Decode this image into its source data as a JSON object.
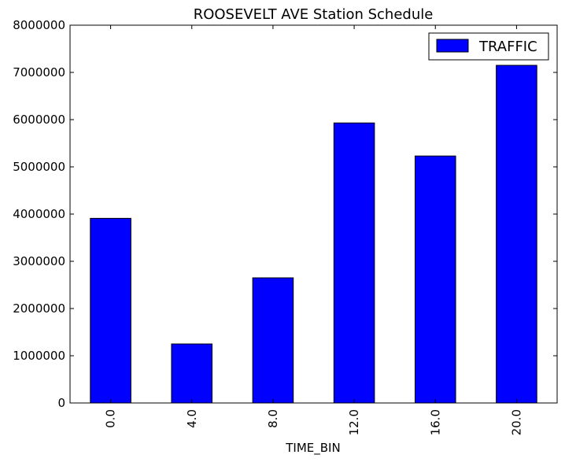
{
  "chart_data": {
    "type": "bar",
    "title": "ROOSEVELT AVE Station Schedule",
    "xlabel": "TIME_BIN",
    "ylabel": "",
    "categories": [
      "0.0",
      "4.0",
      "8.0",
      "12.0",
      "16.0",
      "20.0"
    ],
    "series": [
      {
        "name": "TRAFFIC",
        "color": "#0000ff",
        "values": [
          3910000,
          1250000,
          2650000,
          5930000,
          5230000,
          7150000
        ]
      }
    ],
    "ylim": [
      0,
      8000000
    ],
    "yticks": [
      "0",
      "1000000",
      "2000000",
      "3000000",
      "4000000",
      "5000000",
      "6000000",
      "7000000",
      "8000000"
    ],
    "grid": false,
    "legend_position": "top-right"
  }
}
